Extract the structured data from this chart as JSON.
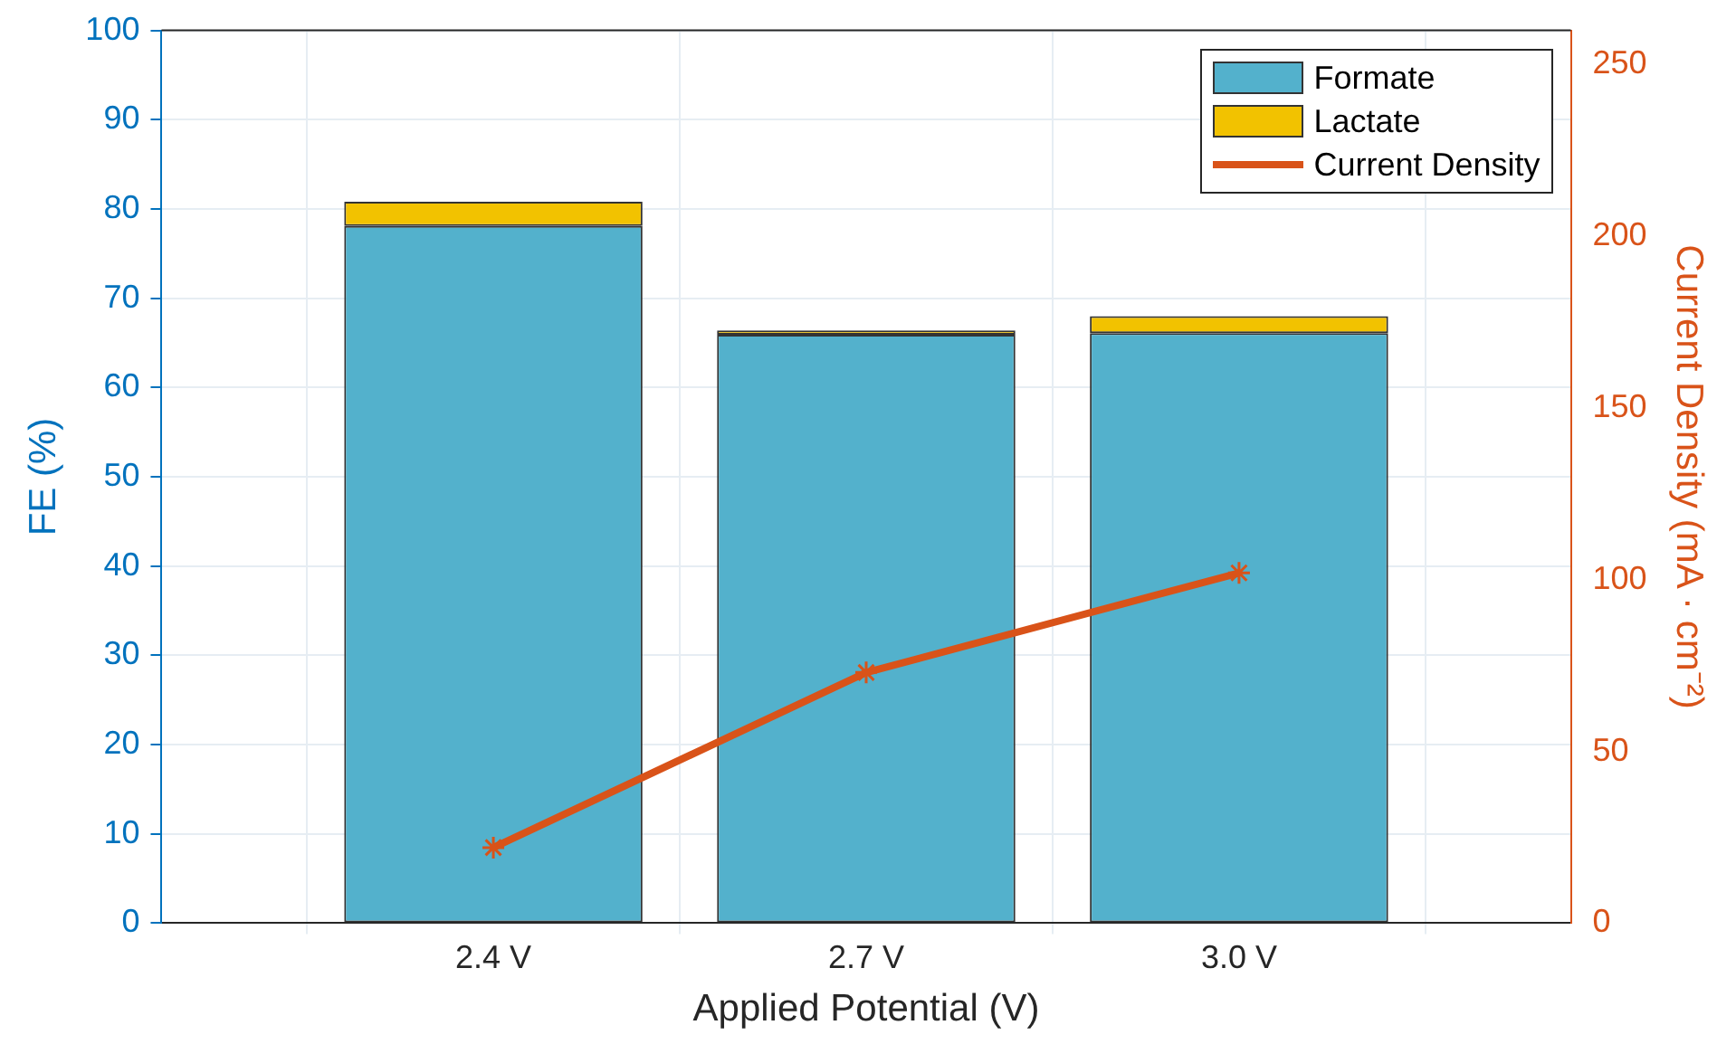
{
  "chart_data": {
    "type": "bar",
    "stacked": true,
    "categories": [
      "2.4 V",
      "2.7 V",
      "3.0 V"
    ],
    "xlabel": "Applied Potential (V)",
    "ylabel": "FE (%)",
    "y2label": "Current Density (mA · cm⁻²)",
    "series": [
      {
        "name": "Formate",
        "color": "#53b1cc",
        "values": [
          78.1,
          65.9,
          66.1
        ]
      },
      {
        "name": "Lactate",
        "color": "#f2c200",
        "values": [
          2.7,
          0.5,
          1.9
        ]
      },
      {
        "name": "Current Density",
        "type": "line",
        "axis": "y2",
        "color": "#d95319",
        "marker": "cross",
        "values": [
          22,
          73,
          102
        ]
      }
    ],
    "ylim": [
      0,
      100
    ],
    "yticks": [
      0,
      10,
      20,
      30,
      40,
      50,
      60,
      70,
      80,
      90,
      100
    ],
    "y2lim": [
      0,
      260
    ],
    "y2ticks": [
      0,
      50,
      100,
      150,
      200,
      250
    ],
    "grid": true,
    "legend": "top right"
  }
}
